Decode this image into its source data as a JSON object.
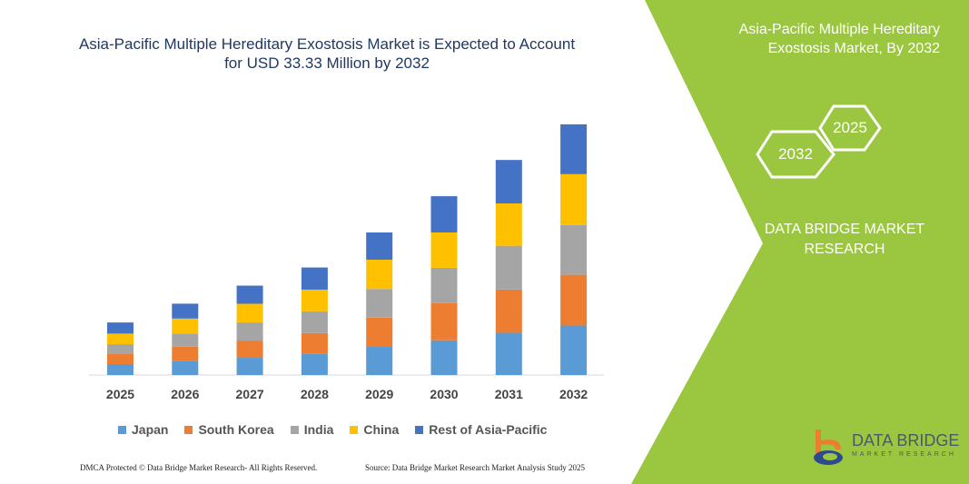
{
  "title": "Asia-Pacific Multiple Hereditary Exostosis Market is Expected to Account for USD 33.33 Million by 2032",
  "side_panel": {
    "title": "Asia-Pacific Multiple Hereditary Exostosis Market, By 2032",
    "hex_left": "2032",
    "hex_right": "2025",
    "brand": "DATA BRIDGE MARKET RESEARCH",
    "logo_name": "DATA BRIDGE",
    "logo_sub": "MARKET RESEARCH",
    "color": "#9bc63f"
  },
  "footer": {
    "left": "DMCA Protected © Data Bridge Market Research- All Rights Reserved.",
    "right": "Source: Data Bridge Market Research Market Analysis Study 2025"
  },
  "chart_data": {
    "type": "bar",
    "stacked": true,
    "categories": [
      "2025",
      "2026",
      "2027",
      "2028",
      "2029",
      "2030",
      "2031",
      "2032"
    ],
    "series": [
      {
        "name": "Japan",
        "color": "#5b9bd5",
        "values": [
          1.45,
          1.89,
          2.29,
          2.86,
          3.81,
          4.62,
          5.62,
          6.58
        ]
      },
      {
        "name": "South Korea",
        "color": "#ed7d31",
        "values": [
          1.41,
          1.88,
          2.29,
          2.72,
          3.82,
          4.94,
          5.75,
          6.75
        ]
      },
      {
        "name": "India",
        "color": "#a5a5a5",
        "values": [
          1.24,
          1.74,
          2.41,
          2.89,
          3.82,
          4.7,
          5.82,
          6.63
        ]
      },
      {
        "name": "China",
        "color": "#ffc000",
        "values": [
          1.41,
          2.0,
          2.49,
          2.89,
          3.89,
          4.7,
          5.63,
          6.75
        ]
      },
      {
        "name": "Rest of Asia-Pacific",
        "color": "#4472c4",
        "values": [
          1.48,
          1.98,
          2.41,
          2.94,
          3.62,
          4.82,
          5.78,
          6.63
        ]
      }
    ],
    "ylim": [
      0,
      33.33
    ],
    "grid": false,
    "legend": "bottom"
  }
}
